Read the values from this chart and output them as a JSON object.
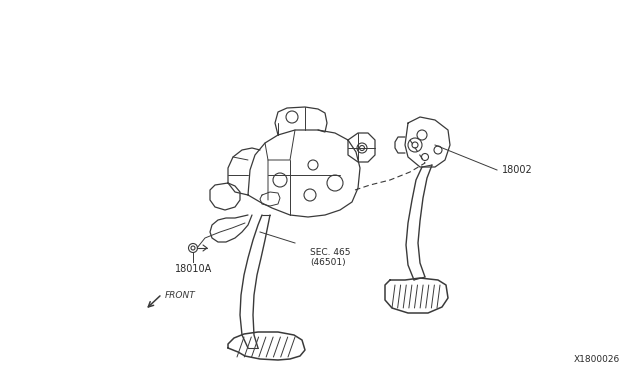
{
  "bg_color": "#ffffff",
  "line_color": "#3a3a3a",
  "label_color": "#2a2a2a",
  "labels": {
    "part1": "18002",
    "part2": "18010A",
    "part3": "SEC. 465\n(46501)",
    "front": "FRONT",
    "catalog": "X1800026"
  },
  "figsize": [
    6.4,
    3.72
  ],
  "dpi": 100
}
